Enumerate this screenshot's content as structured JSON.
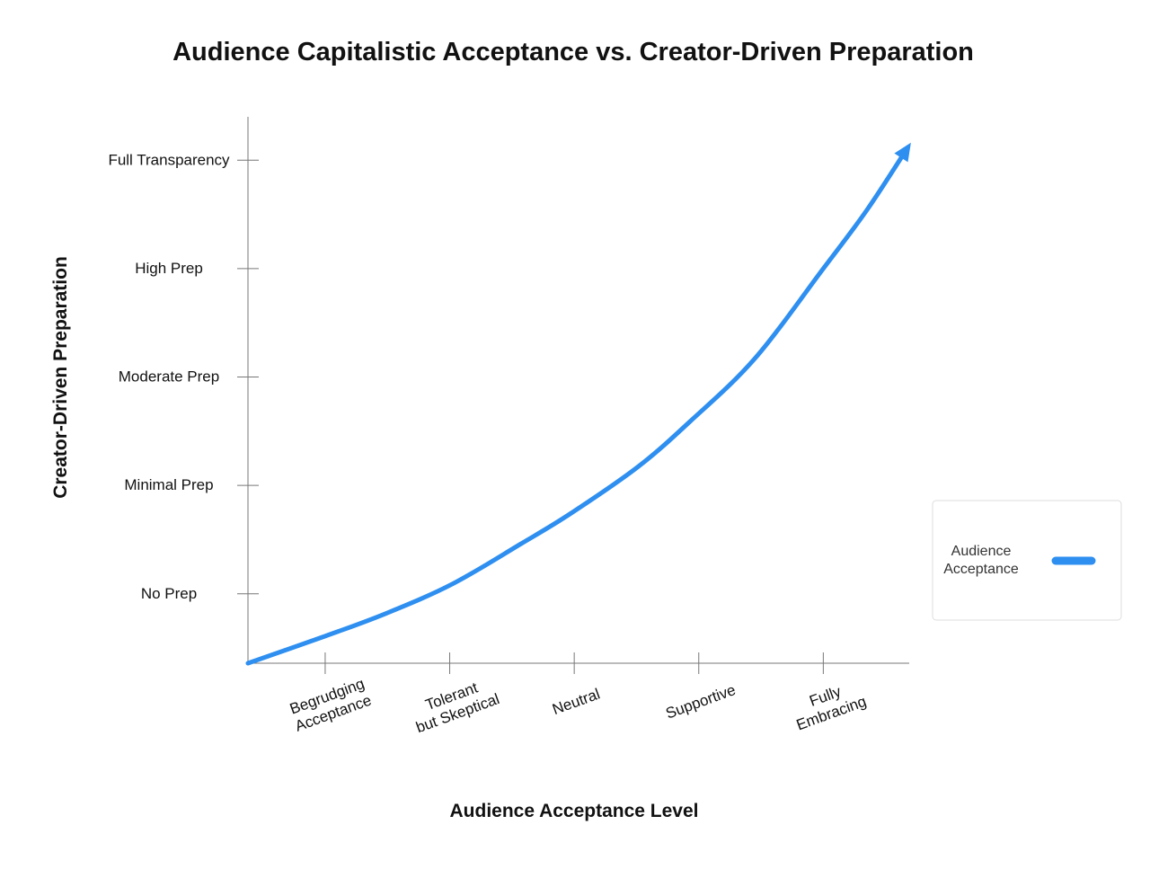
{
  "chart_data": {
    "type": "line",
    "title": "Audience Capitalistic Acceptance vs. Creator-Driven Preparation",
    "xlabel": "Audience Acceptance Level",
    "ylabel": "Creator-Driven Preparation",
    "x_categories": [
      [
        "Begrudging",
        "Acceptance"
      ],
      [
        "Tolerant",
        "but Skeptical"
      ],
      [
        "Neutral"
      ],
      [
        "Supportive"
      ],
      [
        "Fully",
        "Embracing"
      ]
    ],
    "y_categories": [
      "No Prep",
      "Minimal Prep",
      "Moderate Prep",
      "High Prep",
      "Full Transparency"
    ],
    "xlim": [
      0.38,
      5.69
    ],
    "ylim": [
      0.36,
      5.4
    ],
    "grid": false,
    "legend_placement": "right",
    "series": [
      {
        "name": "Audience Acceptance",
        "color": "#2e8ff0",
        "end_marker": "arrow",
        "points": [
          [
            0.38,
            0.36
          ],
          [
            1.0,
            0.61
          ],
          [
            1.49,
            0.82
          ],
          [
            2.02,
            1.09
          ],
          [
            2.57,
            1.46
          ],
          [
            2.97,
            1.74
          ],
          [
            3.51,
            2.17
          ],
          [
            3.93,
            2.59
          ],
          [
            4.45,
            3.17
          ],
          [
            5.0,
            4.0
          ],
          [
            5.35,
            4.54
          ],
          [
            5.68,
            5.12
          ]
        ]
      }
    ]
  }
}
